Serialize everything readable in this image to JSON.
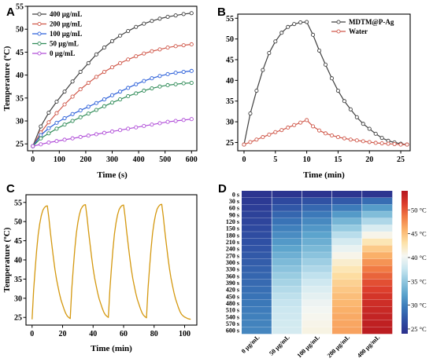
{
  "panels": [
    {
      "letter": "A",
      "chart_data": {
        "type": "line",
        "xlabel": "Time (s)",
        "ylabel": "Temperature (ºC)",
        "xlim": [
          -20,
          620
        ],
        "ylim": [
          23.5,
          55
        ],
        "xticks": [
          0,
          100,
          200,
          300,
          400,
          500,
          600
        ],
        "yticks": [
          25,
          30,
          35,
          40,
          45,
          50,
          55
        ],
        "legend_position": "top-left",
        "series": [
          {
            "name": "400 μg/mL",
            "color": "#404040",
            "x": [
              0,
              30,
              60,
              90,
              120,
              150,
              180,
              210,
              240,
              270,
              300,
              330,
              360,
              390,
              420,
              450,
              480,
              510,
              540,
              570,
              600
            ],
            "y": [
              24.5,
              28.8,
              31.8,
              34.2,
              36.4,
              38.6,
              40.7,
              42.6,
              44.5,
              46.0,
              47.4,
              48.6,
              49.6,
              50.5,
              51.2,
              51.8,
              52.3,
              52.7,
              53.0,
              53.3,
              53.5
            ]
          },
          {
            "name": "200 μg/mL",
            "color": "#d0584a",
            "x": [
              0,
              30,
              60,
              90,
              120,
              150,
              180,
              210,
              240,
              270,
              300,
              330,
              360,
              390,
              420,
              450,
              480,
              510,
              540,
              570,
              600
            ],
            "y": [
              24.5,
              27.5,
              29.7,
              31.7,
              33.6,
              35.3,
              36.9,
              38.3,
              39.6,
              40.7,
              41.7,
              42.6,
              43.4,
              44.1,
              44.7,
              45.2,
              45.6,
              46.0,
              46.3,
              46.5,
              46.7
            ]
          },
          {
            "name": "100 μg/mL",
            "color": "#2b5fd9",
            "x": [
              0,
              30,
              60,
              90,
              120,
              150,
              180,
              210,
              240,
              270,
              300,
              330,
              360,
              390,
              420,
              450,
              480,
              510,
              540,
              570,
              600
            ],
            "y": [
              24.5,
              26.9,
              28.4,
              29.6,
              30.6,
              31.5,
              32.3,
              33.1,
              33.9,
              34.7,
              35.6,
              36.4,
              37.2,
              38.0,
              38.7,
              39.3,
              39.8,
              40.2,
              40.5,
              40.7,
              40.9
            ]
          },
          {
            "name": "50 μg/mL",
            "color": "#2e8b57",
            "x": [
              0,
              30,
              60,
              90,
              120,
              150,
              180,
              210,
              240,
              270,
              300,
              330,
              360,
              390,
              420,
              450,
              480,
              510,
              540,
              570,
              600
            ],
            "y": [
              24.5,
              26.2,
              27.3,
              28.3,
              29.2,
              30.0,
              30.8,
              31.6,
              32.4,
              33.2,
              34.0,
              34.7,
              35.4,
              36.0,
              36.6,
              37.1,
              37.5,
              37.8,
              38.0,
              38.2,
              38.3
            ]
          },
          {
            "name": "0 μg/mL",
            "color": "#b04dd8",
            "x": [
              0,
              30,
              60,
              90,
              120,
              150,
              180,
              210,
              240,
              270,
              300,
              330,
              360,
              390,
              420,
              450,
              480,
              510,
              540,
              570,
              600
            ],
            "y": [
              24.5,
              24.9,
              25.3,
              25.6,
              25.9,
              26.2,
              26.5,
              26.8,
              27.1,
              27.4,
              27.7,
              28.0,
              28.3,
              28.6,
              28.9,
              29.2,
              29.5,
              29.8,
              30.0,
              30.2,
              30.4
            ]
          }
        ]
      }
    },
    {
      "letter": "B",
      "chart_data": {
        "type": "line",
        "xlabel": "Time (min)",
        "ylabel": "",
        "xlim": [
          -1,
          26.5
        ],
        "ylim": [
          23,
          56
        ],
        "xticks": [
          0,
          5,
          10,
          15,
          20,
          25
        ],
        "yticks": [
          25,
          30,
          35,
          40,
          45,
          50,
          55
        ],
        "legend_position": "top-right",
        "series": [
          {
            "name": "MDTM@P-Ag",
            "color": "#404040",
            "x": [
              0,
              1,
              2,
              3,
              4,
              5,
              6,
              7,
              8,
              9,
              10,
              11,
              12,
              13,
              14,
              15,
              16,
              17,
              18,
              19,
              20,
              21,
              22,
              23,
              24,
              25,
              26
            ],
            "y": [
              24.5,
              32.0,
              37.5,
              42.5,
              46.6,
              49.4,
              51.5,
              52.9,
              53.6,
              54.0,
              54.1,
              51.0,
              47.2,
              43.8,
              40.5,
              37.5,
              35.0,
              33.0,
              31.1,
              29.5,
              28.3,
              27.1,
              26.1,
              25.4,
              25.0,
              24.7,
              24.5
            ]
          },
          {
            "name": "Water",
            "color": "#d0584a",
            "x": [
              0,
              1,
              2,
              3,
              4,
              5,
              6,
              7,
              8,
              9,
              10,
              11,
              12,
              13,
              14,
              15,
              16,
              17,
              18,
              19,
              20,
              21,
              22,
              23,
              24,
              25,
              26
            ],
            "y": [
              24.5,
              25.1,
              25.7,
              26.3,
              26.9,
              27.5,
              28.0,
              28.6,
              29.2,
              29.8,
              30.4,
              28.9,
              27.9,
              27.2,
              26.7,
              26.3,
              26.0,
              25.7,
              25.5,
              25.3,
              25.1,
              24.9,
              24.8,
              24.7,
              24.6,
              24.5,
              24.5
            ]
          }
        ]
      }
    },
    {
      "letter": "C",
      "chart_data": {
        "type": "line",
        "xlabel": "Time (min)",
        "ylabel": "Temperature (ºC)",
        "xlim": [
          -4,
          108
        ],
        "ylim": [
          23,
          57
        ],
        "xticks": [
          0,
          20,
          40,
          60,
          80,
          100
        ],
        "yticks": [
          25,
          30,
          35,
          40,
          45,
          50,
          55
        ],
        "series": [
          {
            "name": "",
            "color": "#d4980f",
            "x": [
              0,
              1,
              2,
              3,
              4,
              5,
              6,
              7,
              8,
              9,
              10,
              11,
              12,
              13,
              14,
              15,
              16,
              17,
              18,
              19,
              20,
              21,
              22,
              23,
              24,
              25,
              26,
              27,
              28,
              29,
              30,
              31,
              32,
              33,
              34,
              35,
              36,
              37,
              38,
              39,
              40,
              41,
              42,
              43,
              44,
              45,
              46,
              47,
              48,
              49,
              50,
              51,
              52,
              53,
              54,
              55,
              56,
              57,
              58,
              59,
              60,
              61,
              62,
              63,
              64,
              65,
              66,
              67,
              68,
              69,
              70,
              71,
              72,
              73,
              74,
              75,
              76,
              77,
              78,
              79,
              80,
              81,
              82,
              83,
              84,
              85,
              86,
              87,
              88,
              89,
              90,
              91,
              92,
              93,
              94,
              95,
              96,
              97,
              98,
              99,
              100,
              101,
              102,
              103,
              104
            ],
            "y": [
              24.5,
              32.0,
              37.5,
              42.5,
              46.6,
              49.4,
              51.5,
              52.9,
              53.6,
              54.0,
              54.1,
              51.0,
              47.2,
              43.8,
              40.5,
              37.5,
              35.0,
              33.0,
              31.1,
              29.5,
              28.3,
              27.1,
              26.1,
              25.4,
              25.0,
              24.7,
              32.3,
              37.8,
              42.8,
              46.9,
              49.7,
              51.8,
              53.2,
              53.9,
              54.3,
              54.4,
              51.3,
              47.5,
              44.1,
              40.8,
              37.8,
              35.3,
              33.3,
              31.4,
              29.8,
              28.6,
              27.4,
              26.4,
              25.7,
              25.3,
              25.0,
              32.2,
              37.7,
              42.7,
              46.8,
              49.6,
              51.7,
              53.1,
              53.8,
              54.2,
              54.3,
              51.2,
              47.4,
              44.0,
              40.7,
              37.7,
              35.2,
              33.2,
              31.3,
              29.7,
              28.5,
              27.3,
              26.3,
              25.6,
              25.2,
              24.9,
              32.4,
              37.9,
              42.9,
              47.0,
              49.8,
              51.9,
              53.3,
              54.0,
              54.4,
              54.5,
              51.4,
              47.6,
              44.2,
              40.9,
              37.9,
              35.4,
              33.4,
              31.5,
              29.9,
              28.7,
              27.5,
              26.5,
              25.8,
              25.4,
              25.1,
              24.9,
              24.7,
              24.6,
              24.5
            ]
          }
        ]
      }
    },
    {
      "letter": "D",
      "chart_data": {
        "type": "heatmap",
        "rows": [
          "0 s",
          "30 s",
          "60 s",
          "90 s",
          "120 s",
          "150 s",
          "180 s",
          "210 s",
          "240 s",
          "270 s",
          "300 s",
          "330 s",
          "360 s",
          "390 s",
          "420 s",
          "450 s",
          "480 s",
          "510 s",
          "540 s",
          "570 s",
          "600 s"
        ],
        "columns": [
          "0 μg/mL",
          "50 μg/mL",
          "100 μg/mL",
          "200 μg/mL",
          "400 μg/mL"
        ],
        "values": [
          [
            24.5,
            24.5,
            24.5,
            24.5,
            24.5
          ],
          [
            24.9,
            26.2,
            26.9,
            27.5,
            28.8
          ],
          [
            25.3,
            27.3,
            28.4,
            29.7,
            31.8
          ],
          [
            25.6,
            28.3,
            29.6,
            31.7,
            34.2
          ],
          [
            25.9,
            29.2,
            30.6,
            33.6,
            36.4
          ],
          [
            26.2,
            30.0,
            31.5,
            35.3,
            38.6
          ],
          [
            26.5,
            30.8,
            32.3,
            36.9,
            40.7
          ],
          [
            26.8,
            31.6,
            33.1,
            38.3,
            42.6
          ],
          [
            27.1,
            32.4,
            33.9,
            39.6,
            44.5
          ],
          [
            27.4,
            33.2,
            34.7,
            40.7,
            46.0
          ],
          [
            27.7,
            34.0,
            35.6,
            41.7,
            47.4
          ],
          [
            28.0,
            34.7,
            36.4,
            42.6,
            48.6
          ],
          [
            28.3,
            35.4,
            37.2,
            43.4,
            49.6
          ],
          [
            28.6,
            36.0,
            38.0,
            44.1,
            50.5
          ],
          [
            28.9,
            36.6,
            38.7,
            44.7,
            51.2
          ],
          [
            29.2,
            37.1,
            39.3,
            45.2,
            51.8
          ],
          [
            29.5,
            37.5,
            39.8,
            45.6,
            52.3
          ],
          [
            29.8,
            37.8,
            40.2,
            46.0,
            52.7
          ],
          [
            30.0,
            38.0,
            40.5,
            46.3,
            53.0
          ],
          [
            30.2,
            38.2,
            40.7,
            46.5,
            53.3
          ],
          [
            30.4,
            38.3,
            40.9,
            46.7,
            53.5
          ]
        ],
        "colorbar_range": [
          24,
          54
        ],
        "colorbar_ticks": [
          "25 °C",
          "30 °C",
          "35 °C",
          "40 °C",
          "45 °C",
          "50 °C"
        ],
        "colorbar_tick_values": [
          25,
          30,
          35,
          40,
          45,
          50
        ],
        "colormap": [
          "#2b2f8c",
          "#2f4fa3",
          "#3a77b8",
          "#5aa2cc",
          "#8fc6de",
          "#c9e6f0",
          "#f6f7f2",
          "#fde2a8",
          "#fbb46c",
          "#f17c45",
          "#dc3d2c",
          "#b5161f"
        ]
      }
    }
  ]
}
